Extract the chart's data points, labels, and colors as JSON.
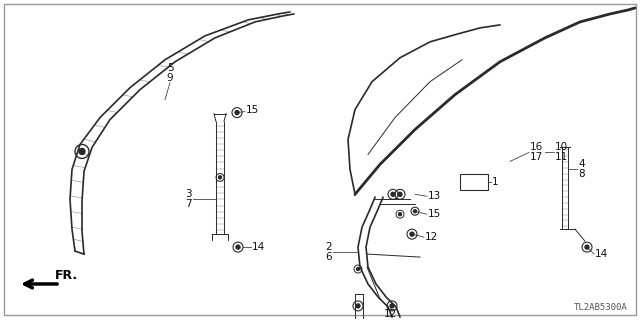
{
  "bg_color": "#ffffff",
  "border_color": "#aaaaaa",
  "line_color": "#2a2a2a",
  "label_color": "#111111",
  "title_text": "TL2AB5300A",
  "fig_w": 6.4,
  "fig_h": 3.2,
  "dpi": 100
}
